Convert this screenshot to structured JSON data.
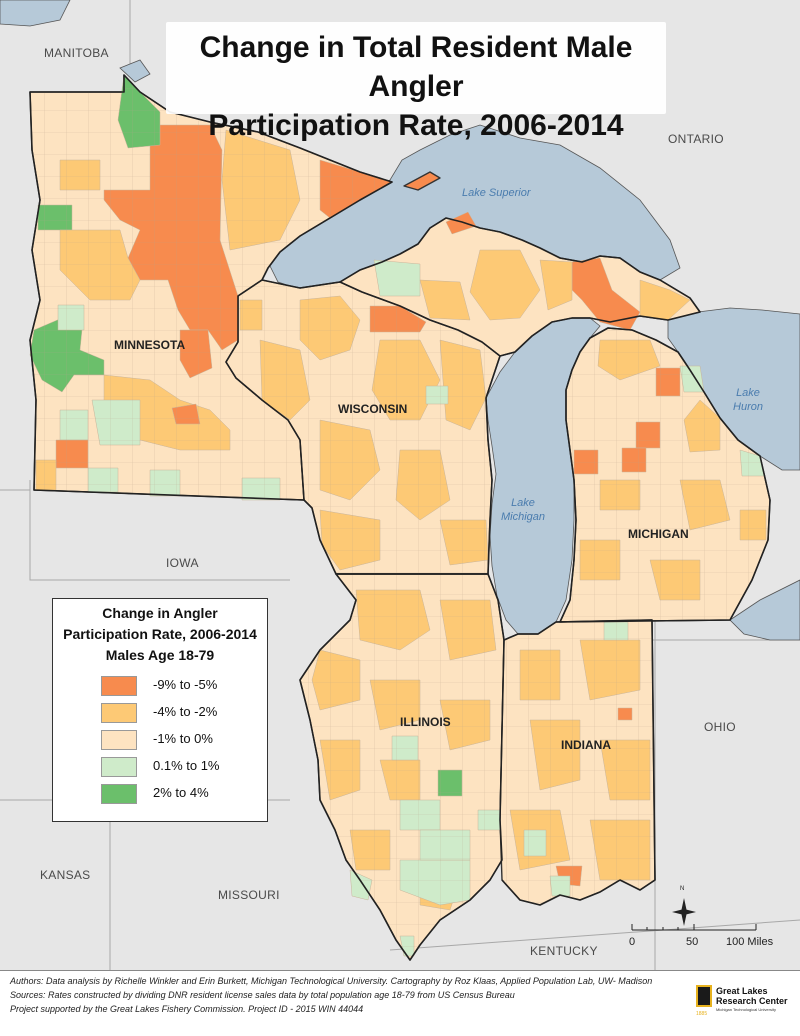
{
  "title": {
    "line1": "Change in Total Resident Male Angler",
    "line2": "Participation Rate, 2006-2014"
  },
  "colors": {
    "cat1": "#f78b4e",
    "cat2": "#fdc975",
    "cat3": "#fde3c1",
    "cat4": "#cfebca",
    "cat5": "#6bbf6b",
    "water": "#b6c9d8",
    "land_outside": "#e6e6e6"
  },
  "legend": {
    "title_line1": "Change in Angler",
    "title_line2": "Participation Rate, 2006-2014",
    "title_line3": "Males Age 18-79",
    "items": [
      {
        "label": "-9% to -5%",
        "color": "#f78b4e"
      },
      {
        "label": "-4% to -2%",
        "color": "#fdc975"
      },
      {
        "label": "-1% to 0%",
        "color": "#fde3c1"
      },
      {
        "label": "0.1% to 1%",
        "color": "#cfebca"
      },
      {
        "label": "2% to 4%",
        "color": "#6bbf6b"
      }
    ]
  },
  "places": {
    "manitoba": "MANITOBA",
    "ontario": "ONTARIO",
    "iowa": "IOWA",
    "kansas": "KANSAS",
    "missouri": "MISSOURI",
    "kentucky": "KENTUCKY",
    "ohio": "OHIO"
  },
  "states": {
    "minnesota": "MINNESOTA",
    "wisconsin": "WISCONSIN",
    "michigan": "MICHIGAN",
    "illinois": "ILLINOIS",
    "indiana": "INDIANA"
  },
  "water": {
    "superior": "Lake Superior",
    "michigan_l1": "Lake",
    "michigan_l2": "Michigan",
    "huron_l1": "Lake",
    "huron_l2": "Huron"
  },
  "scale": {
    "t0": "0",
    "t1": "50",
    "t2": "100 Miles"
  },
  "north_label": "N",
  "footer": {
    "line1": "Authors: Data analysis by Richelle Winkler and Erin Burkett, Michigan Technological University. Cartography by Roz Klaas, Applied Population Lab, UW- Madison",
    "line2": "Sources: Rates constructed by dividing DNR resident license sales data by total population age 18-79 from US Census Bureau",
    "line3": "Project supported by the Great Lakes Fishery Commission. Project ID - 2015 WIN 44044"
  },
  "logo": {
    "line1": "Great Lakes",
    "line2": "Research Center",
    "sub": "Michigan Technological University",
    "year": "1885"
  }
}
